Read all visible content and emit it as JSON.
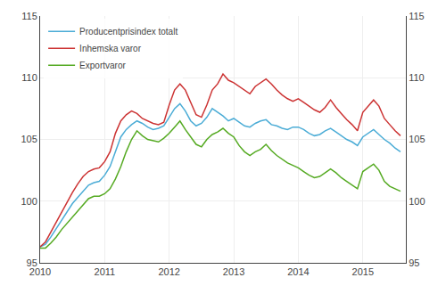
{
  "chart_data": {
    "type": "line",
    "x": [
      2010,
      2010.0833333333333,
      2010.1666666666667,
      2010.25,
      2010.3333333333333,
      2010.4166666666667,
      2010.5,
      2010.5833333333333,
      2010.6666666666667,
      2010.75,
      2010.8333333333333,
      2010.9166666666667,
      2011,
      2011.0833333333333,
      2011.1666666666667,
      2011.25,
      2011.3333333333333,
      2011.4166666666667,
      2011.5,
      2011.5833333333333,
      2011.6666666666667,
      2011.75,
      2011.8333333333333,
      2011.9166666666667,
      2012,
      2012.0833333333333,
      2012.1666666666667,
      2012.25,
      2012.3333333333333,
      2012.4166666666667,
      2012.5,
      2012.5833333333333,
      2012.6666666666667,
      2012.75,
      2012.8333333333333,
      2012.9166666666667,
      2013,
      2013.0833333333333,
      2013.1666666666667,
      2013.25,
      2013.3333333333333,
      2013.4166666666667,
      2013.5,
      2013.5833333333333,
      2013.6666666666667,
      2013.75,
      2013.8333333333333,
      2013.9166666666667,
      2014,
      2014.0833333333333,
      2014.1666666666667,
      2014.25,
      2014.3333333333333,
      2014.4166666666667,
      2014.5,
      2014.5833333333333,
      2014.6666666666667,
      2014.75,
      2014.8333333333333,
      2014.9166666666667,
      2015,
      2015.0833333333333,
      2015.1666666666667,
      2015.25,
      2015.3333333333333,
      2015.4166666666667,
      2015.5,
      2015.5833333333333
    ],
    "series": [
      {
        "name": "Producentprisindex totalt",
        "color": "#4bacd6",
        "values": [
          96.3,
          96.5,
          97.1,
          97.8,
          98.5,
          99.2,
          99.8,
          100.3,
          100.8,
          101.3,
          101.5,
          101.6,
          102.1,
          102.8,
          104.0,
          105.2,
          105.8,
          106.2,
          106.5,
          106.3,
          106.0,
          105.8,
          105.9,
          106.1,
          106.8,
          107.5,
          107.9,
          107.3,
          106.5,
          106.1,
          106.3,
          106.8,
          107.5,
          107.2,
          106.9,
          106.5,
          106.7,
          106.4,
          106.1,
          106.0,
          106.3,
          106.5,
          106.6,
          106.2,
          106.1,
          105.9,
          105.8,
          106.0,
          106.0,
          105.8,
          105.5,
          105.3,
          105.4,
          105.7,
          105.9,
          105.6,
          105.3,
          105.0,
          104.8,
          104.5,
          105.2,
          105.5,
          105.8,
          105.4,
          105.0,
          104.7,
          104.3,
          104.0
        ]
      },
      {
        "name": "Inhemska varor",
        "color": "#cc3333",
        "values": [
          96.3,
          96.7,
          97.5,
          98.3,
          99.2,
          100.0,
          100.7,
          101.4,
          102.0,
          102.4,
          102.6,
          102.7,
          103.2,
          104.0,
          105.5,
          106.5,
          107.0,
          107.3,
          107.1,
          106.7,
          106.5,
          106.3,
          106.2,
          106.4,
          107.8,
          109.0,
          109.5,
          109.0,
          108.0,
          107.0,
          106.8,
          107.8,
          109.0,
          109.5,
          110.3,
          109.8,
          109.6,
          109.3,
          109.0,
          108.7,
          109.3,
          109.6,
          109.9,
          109.5,
          109.0,
          108.6,
          108.3,
          108.1,
          108.3,
          108.0,
          107.7,
          107.4,
          107.2,
          107.6,
          108.2,
          107.6,
          107.1,
          106.6,
          106.2,
          105.7,
          107.2,
          107.7,
          108.2,
          107.7,
          106.7,
          106.2,
          105.7,
          105.3
        ]
      },
      {
        "name": "Exportvaror",
        "color": "#55aa22",
        "values": [
          96.2,
          96.2,
          96.6,
          97.1,
          97.7,
          98.2,
          98.7,
          99.2,
          99.7,
          100.2,
          100.4,
          100.4,
          100.6,
          101.0,
          101.8,
          102.8,
          104.0,
          105.0,
          105.7,
          105.3,
          105.0,
          104.9,
          104.8,
          105.1,
          105.5,
          106.0,
          106.5,
          105.8,
          105.2,
          104.6,
          104.4,
          105.0,
          105.4,
          105.6,
          105.9,
          105.5,
          105.2,
          104.5,
          104.0,
          103.7,
          104.0,
          104.2,
          104.6,
          104.1,
          103.7,
          103.4,
          103.1,
          102.9,
          102.7,
          102.4,
          102.1,
          101.9,
          102.0,
          102.3,
          102.6,
          102.3,
          101.9,
          101.6,
          101.3,
          101.0,
          102.4,
          102.7,
          103.0,
          102.5,
          101.6,
          101.2,
          101.0,
          100.8
        ]
      }
    ],
    "xlim": [
      2010,
      2015.6666666666667
    ],
    "xticks": [
      2010,
      2011,
      2012,
      2013,
      2014,
      2015
    ],
    "ylim": [
      95,
      115
    ],
    "yticks": [
      95,
      100,
      105,
      110,
      115
    ],
    "y2lim": [
      95,
      115
    ],
    "y2ticks": [
      95,
      100,
      105,
      110,
      115
    ],
    "grid": true,
    "legend": "upper left"
  }
}
